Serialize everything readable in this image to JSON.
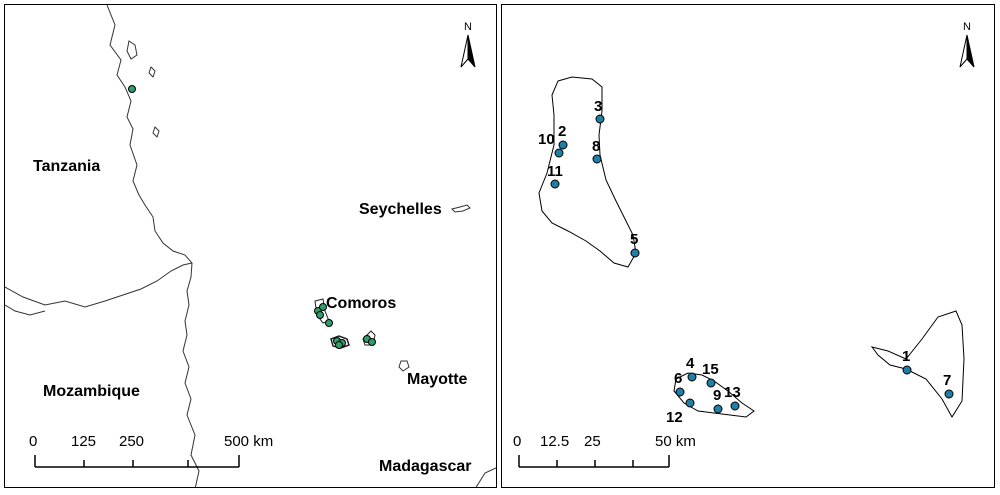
{
  "overview_map": {
    "north_label": "N",
    "countries": {
      "tanzania": "Tanzania",
      "mozambique": "Mozambique",
      "madagascar": "Madagascar",
      "seychelles": "Seychelles",
      "comoros": "Comoros",
      "mayotte": "Mayotte"
    },
    "scale_bar": {
      "ticks": [
        "0",
        "125",
        "250",
        "500 km"
      ]
    },
    "marker_color": "#2e9e6e"
  },
  "detail_map": {
    "north_label": "N",
    "site_labels": [
      "1",
      "2",
      "3",
      "4",
      "5",
      "6",
      "7",
      "8",
      "9",
      "10",
      "11",
      "12",
      "13",
      "15"
    ],
    "scale_bar": {
      "ticks": [
        "0",
        "12.5",
        "25",
        "50 km"
      ]
    },
    "marker_color": "#1f7fa6"
  }
}
